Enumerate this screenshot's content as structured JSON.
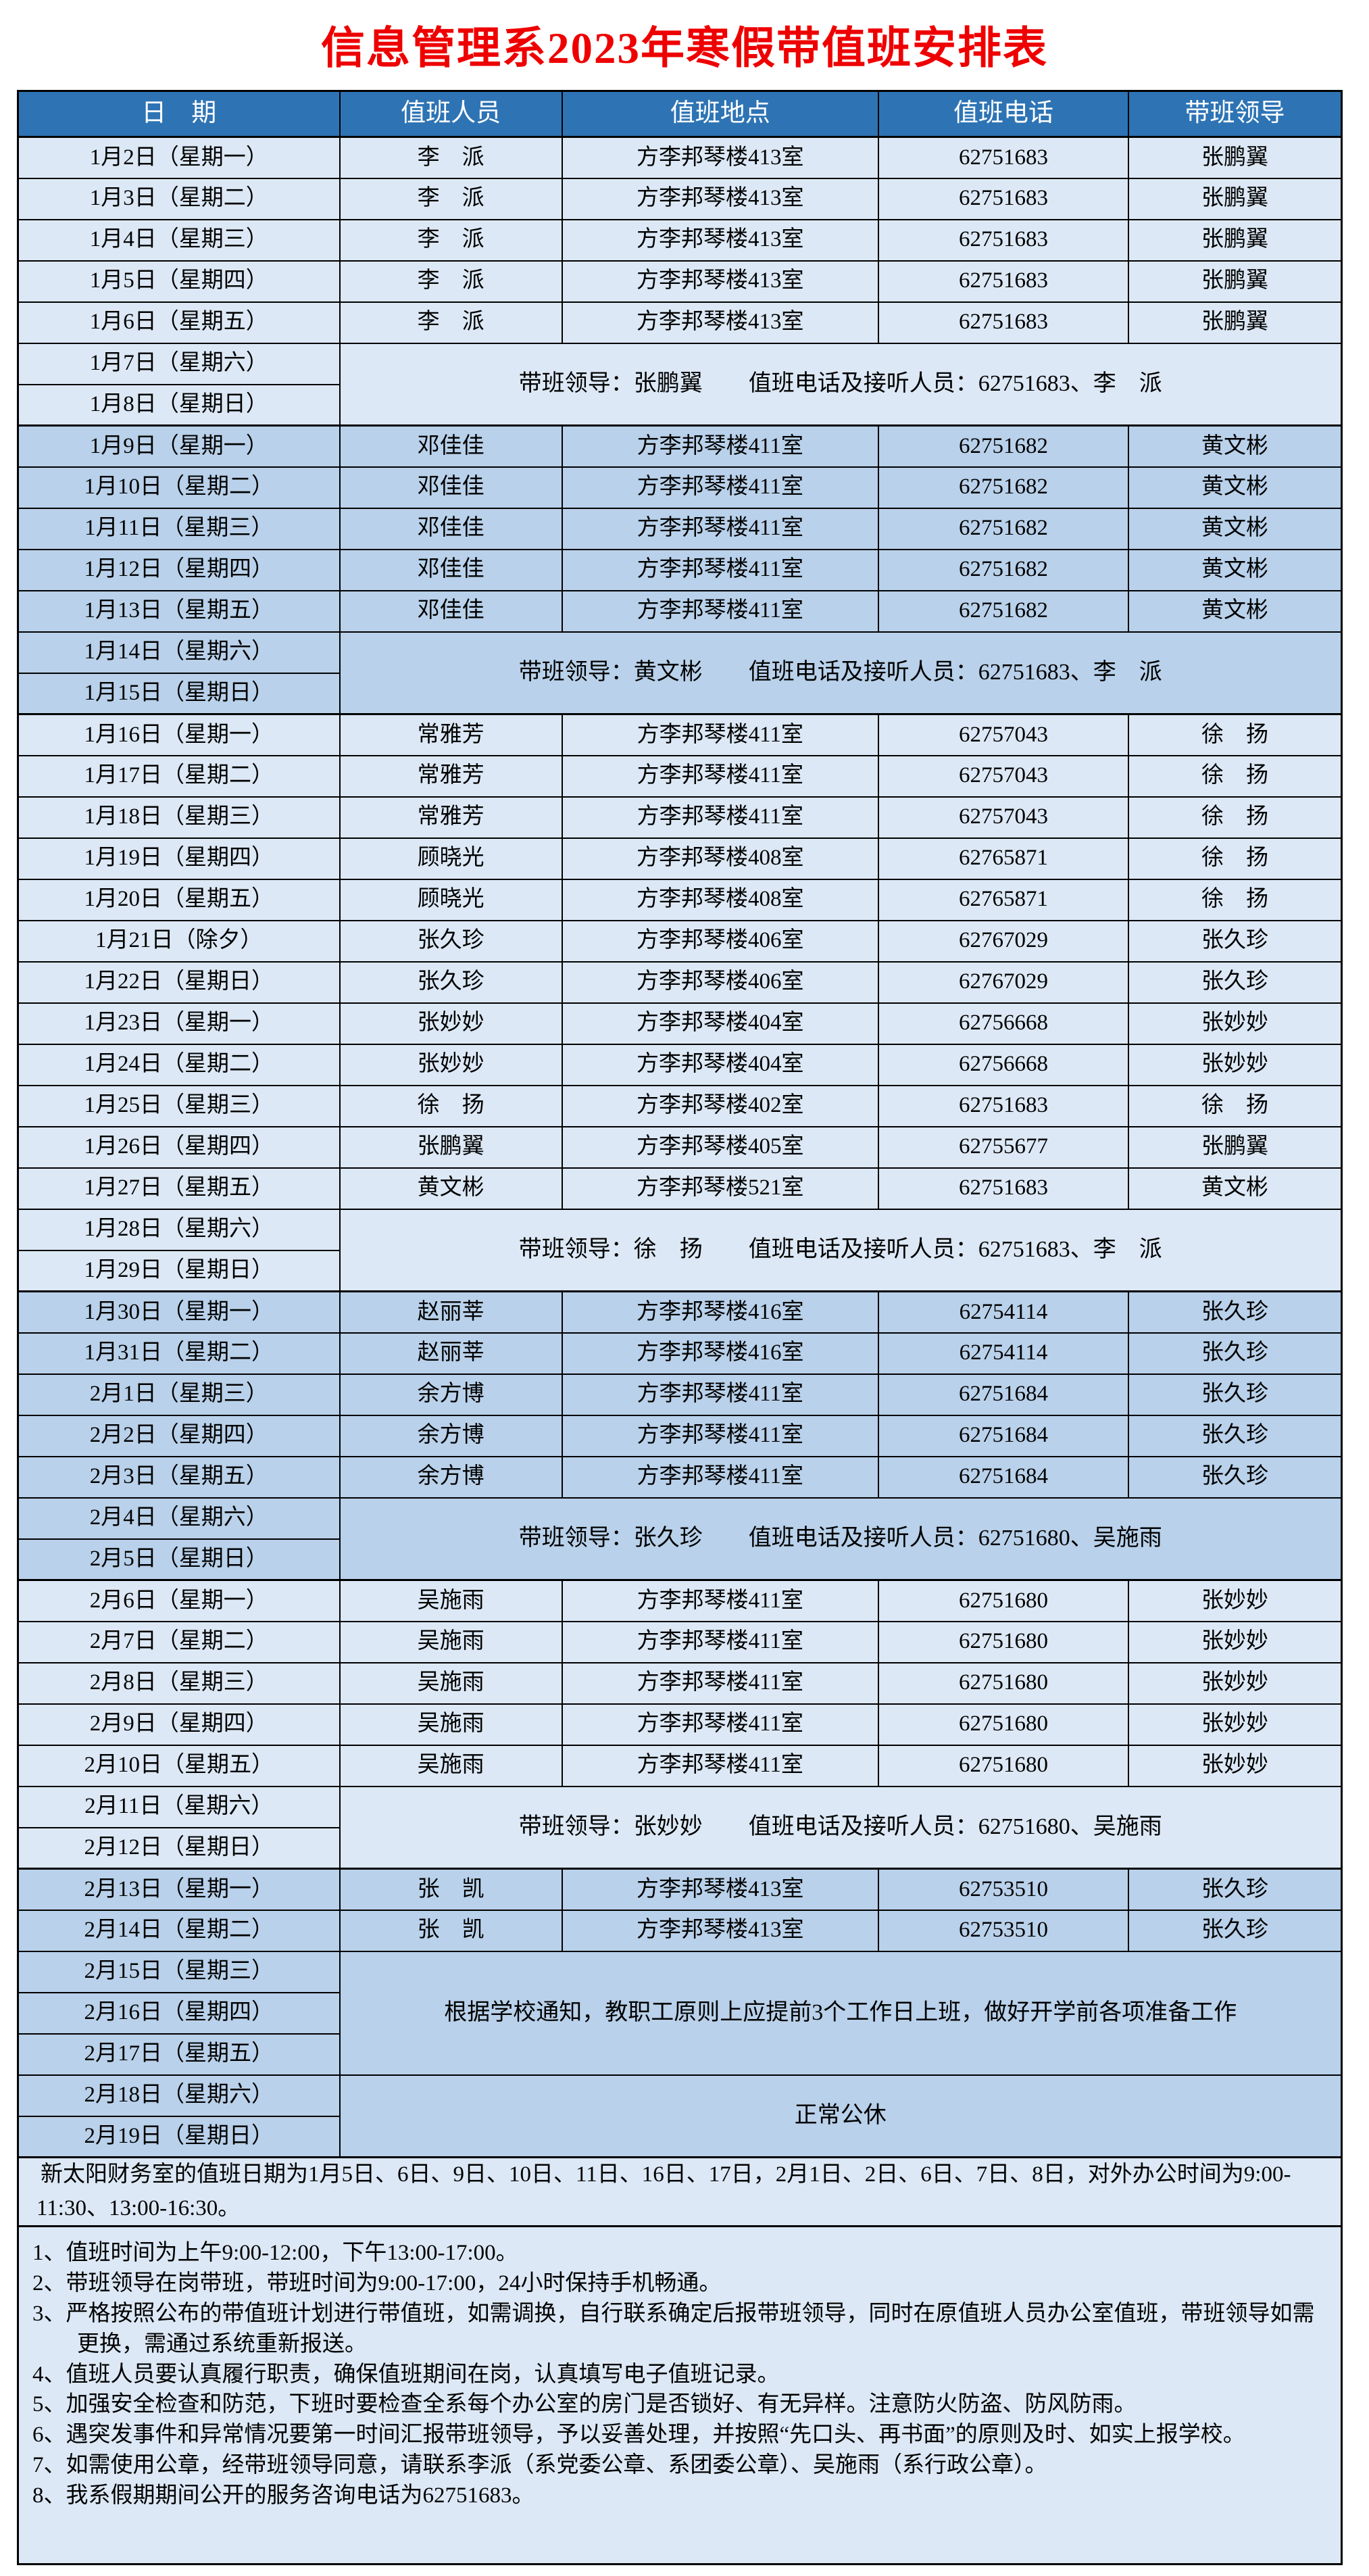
{
  "title": "信息管理系2023年寒假带值班安排表",
  "colors": {
    "header_bg": "#2e74b5",
    "light_row": "#dce8f5",
    "dark_row": "#b9d1ea",
    "title_red": "#ee0000",
    "border": "#000000"
  },
  "table": {
    "columns": [
      "日　期",
      "值班人员",
      "值班地点",
      "值班电话",
      "带班领导"
    ],
    "rows": [
      {
        "kind": "duty",
        "shade": "light",
        "groupStart": true,
        "date": "1月2日（星期一）",
        "person": "李　派",
        "place": "方李邦琴楼413室",
        "phone": "62751683",
        "leader": "张鹏翼"
      },
      {
        "kind": "duty",
        "shade": "light",
        "groupStart": false,
        "date": "1月3日（星期二）",
        "person": "李　派",
        "place": "方李邦琴楼413室",
        "phone": "62751683",
        "leader": "张鹏翼"
      },
      {
        "kind": "duty",
        "shade": "light",
        "groupStart": false,
        "date": "1月4日（星期三）",
        "person": "李　派",
        "place": "方李邦琴楼413室",
        "phone": "62751683",
        "leader": "张鹏翼"
      },
      {
        "kind": "duty",
        "shade": "light",
        "groupStart": false,
        "date": "1月5日（星期四）",
        "person": "李　派",
        "place": "方李邦琴楼413室",
        "phone": "62751683",
        "leader": "张鹏翼"
      },
      {
        "kind": "duty",
        "shade": "light",
        "groupStart": false,
        "date": "1月6日（星期五）",
        "person": "李　派",
        "place": "方李邦琴楼413室",
        "phone": "62751683",
        "leader": "张鹏翼"
      },
      {
        "kind": "merged",
        "shade": "light",
        "groupStart": false,
        "dates": [
          "1月7日（星期六）",
          "1月8日（星期日）"
        ],
        "note": "带班领导：张鹏翼　　值班电话及接听人员：62751683、李　派"
      },
      {
        "kind": "duty",
        "shade": "dark",
        "groupStart": true,
        "date": "1月9日（星期一）",
        "person": "邓佳佳",
        "place": "方李邦琴楼411室",
        "phone": "62751682",
        "leader": "黄文彬"
      },
      {
        "kind": "duty",
        "shade": "dark",
        "groupStart": false,
        "date": "1月10日（星期二）",
        "person": "邓佳佳",
        "place": "方李邦琴楼411室",
        "phone": "62751682",
        "leader": "黄文彬"
      },
      {
        "kind": "duty",
        "shade": "dark",
        "groupStart": false,
        "date": "1月11日（星期三）",
        "person": "邓佳佳",
        "place": "方李邦琴楼411室",
        "phone": "62751682",
        "leader": "黄文彬"
      },
      {
        "kind": "duty",
        "shade": "dark",
        "groupStart": false,
        "date": "1月12日（星期四）",
        "person": "邓佳佳",
        "place": "方李邦琴楼411室",
        "phone": "62751682",
        "leader": "黄文彬"
      },
      {
        "kind": "duty",
        "shade": "dark",
        "groupStart": false,
        "date": "1月13日（星期五）",
        "person": "邓佳佳",
        "place": "方李邦琴楼411室",
        "phone": "62751682",
        "leader": "黄文彬"
      },
      {
        "kind": "merged",
        "shade": "dark",
        "groupStart": false,
        "dates": [
          "1月14日（星期六）",
          "1月15日（星期日）"
        ],
        "note": "带班领导：黄文彬　　值班电话及接听人员：62751683、李　派"
      },
      {
        "kind": "duty",
        "shade": "light",
        "groupStart": true,
        "date": "1月16日（星期一）",
        "person": "常雅芳",
        "place": "方李邦琴楼411室",
        "phone": "62757043",
        "leader": "徐　扬"
      },
      {
        "kind": "duty",
        "shade": "light",
        "groupStart": false,
        "date": "1月17日（星期二）",
        "person": "常雅芳",
        "place": "方李邦琴楼411室",
        "phone": "62757043",
        "leader": "徐　扬"
      },
      {
        "kind": "duty",
        "shade": "light",
        "groupStart": false,
        "date": "1月18日（星期三）",
        "person": "常雅芳",
        "place": "方李邦琴楼411室",
        "phone": "62757043",
        "leader": "徐　扬"
      },
      {
        "kind": "duty",
        "shade": "light",
        "groupStart": false,
        "date": "1月19日（星期四）",
        "person": "顾晓光",
        "place": "方李邦琴楼408室",
        "phone": "62765871",
        "leader": "徐　扬"
      },
      {
        "kind": "duty",
        "shade": "light",
        "groupStart": false,
        "date": "1月20日（星期五）",
        "person": "顾晓光",
        "place": "方李邦琴楼408室",
        "phone": "62765871",
        "leader": "徐　扬"
      },
      {
        "kind": "duty",
        "shade": "light",
        "groupStart": false,
        "date": "1月21日（除夕）",
        "person": "张久珍",
        "place": "方李邦琴楼406室",
        "phone": "62767029",
        "leader": "张久珍"
      },
      {
        "kind": "duty",
        "shade": "light",
        "groupStart": false,
        "date": "1月22日（星期日）",
        "person": "张久珍",
        "place": "方李邦琴楼406室",
        "phone": "62767029",
        "leader": "张久珍"
      },
      {
        "kind": "duty",
        "shade": "light",
        "groupStart": false,
        "date": "1月23日（星期一）",
        "person": "张妙妙",
        "place": "方李邦琴楼404室",
        "phone": "62756668",
        "leader": "张妙妙"
      },
      {
        "kind": "duty",
        "shade": "light",
        "groupStart": false,
        "date": "1月24日（星期二）",
        "person": "张妙妙",
        "place": "方李邦琴楼404室",
        "phone": "62756668",
        "leader": "张妙妙"
      },
      {
        "kind": "duty",
        "shade": "light",
        "groupStart": false,
        "date": "1月25日（星期三）",
        "person": "徐　扬",
        "place": "方李邦琴楼402室",
        "phone": "62751683",
        "leader": "徐　扬"
      },
      {
        "kind": "duty",
        "shade": "light",
        "groupStart": false,
        "date": "1月26日（星期四）",
        "person": "张鹏翼",
        "place": "方李邦琴楼405室",
        "phone": "62755677",
        "leader": "张鹏翼"
      },
      {
        "kind": "duty",
        "shade": "light",
        "groupStart": false,
        "date": "1月27日（星期五）",
        "person": "黄文彬",
        "place": "方李邦琴楼521室",
        "phone": "62751683",
        "leader": "黄文彬"
      },
      {
        "kind": "merged",
        "shade": "light",
        "groupStart": false,
        "dates": [
          "1月28日（星期六）",
          "1月29日（星期日）"
        ],
        "note": "带班领导：徐　扬　　值班电话及接听人员：62751683、李　派"
      },
      {
        "kind": "duty",
        "shade": "dark",
        "groupStart": true,
        "date": "1月30日（星期一）",
        "person": "赵丽莘",
        "place": "方李邦琴楼416室",
        "phone": "62754114",
        "leader": "张久珍"
      },
      {
        "kind": "duty",
        "shade": "dark",
        "groupStart": false,
        "date": "1月31日（星期二）",
        "person": "赵丽莘",
        "place": "方李邦琴楼416室",
        "phone": "62754114",
        "leader": "张久珍"
      },
      {
        "kind": "duty",
        "shade": "dark",
        "groupStart": false,
        "date": "2月1日（星期三）",
        "person": "余方博",
        "place": "方李邦琴楼411室",
        "phone": "62751684",
        "leader": "张久珍"
      },
      {
        "kind": "duty",
        "shade": "dark",
        "groupStart": false,
        "date": "2月2日（星期四）",
        "person": "余方博",
        "place": "方李邦琴楼411室",
        "phone": "62751684",
        "leader": "张久珍"
      },
      {
        "kind": "duty",
        "shade": "dark",
        "groupStart": false,
        "date": "2月3日（星期五）",
        "person": "余方博",
        "place": "方李邦琴楼411室",
        "phone": "62751684",
        "leader": "张久珍"
      },
      {
        "kind": "merged",
        "shade": "dark",
        "groupStart": false,
        "dates": [
          "2月4日（星期六）",
          "2月5日（星期日）"
        ],
        "note": "带班领导：张久珍　　值班电话及接听人员：62751680、吴施雨"
      },
      {
        "kind": "duty",
        "shade": "light",
        "groupStart": true,
        "date": "2月6日（星期一）",
        "person": "吴施雨",
        "place": "方李邦琴楼411室",
        "phone": "62751680",
        "leader": "张妙妙"
      },
      {
        "kind": "duty",
        "shade": "light",
        "groupStart": false,
        "date": "2月7日（星期二）",
        "person": "吴施雨",
        "place": "方李邦琴楼411室",
        "phone": "62751680",
        "leader": "张妙妙"
      },
      {
        "kind": "duty",
        "shade": "light",
        "groupStart": false,
        "date": "2月8日（星期三）",
        "person": "吴施雨",
        "place": "方李邦琴楼411室",
        "phone": "62751680",
        "leader": "张妙妙"
      },
      {
        "kind": "duty",
        "shade": "light",
        "groupStart": false,
        "date": "2月9日（星期四）",
        "person": "吴施雨",
        "place": "方李邦琴楼411室",
        "phone": "62751680",
        "leader": "张妙妙"
      },
      {
        "kind": "duty",
        "shade": "light",
        "groupStart": false,
        "date": "2月10日（星期五）",
        "person": "吴施雨",
        "place": "方李邦琴楼411室",
        "phone": "62751680",
        "leader": "张妙妙"
      },
      {
        "kind": "merged",
        "shade": "light",
        "groupStart": false,
        "dates": [
          "2月11日（星期六）",
          "2月12日（星期日）"
        ],
        "note": "带班领导：张妙妙　　值班电话及接听人员：62751680、吴施雨"
      },
      {
        "kind": "duty",
        "shade": "dark",
        "groupStart": true,
        "date": "2月13日（星期一）",
        "person": "张　凯",
        "place": "方李邦琴楼413室",
        "phone": "62753510",
        "leader": "张久珍"
      },
      {
        "kind": "duty",
        "shade": "dark",
        "groupStart": false,
        "date": "2月14日（星期二）",
        "person": "张　凯",
        "place": "方李邦琴楼413室",
        "phone": "62753510",
        "leader": "张久珍"
      },
      {
        "kind": "merged",
        "shade": "dark",
        "groupStart": false,
        "dates": [
          "2月15日（星期三）",
          "2月16日（星期四）",
          "2月17日（星期五）"
        ],
        "note": "根据学校通知，教职工原则上应提前3个工作日上班，做好开学前各项准备工作"
      },
      {
        "kind": "merged",
        "shade": "dark",
        "groupStart": false,
        "dates": [
          "2月18日（星期六）",
          "2月19日（星期日）"
        ],
        "note": "正常公休"
      }
    ]
  },
  "footer_note": "新太阳财务室的值班日期为1月5日、6日、9日、10日、11日、16日、17日，2月1日、2日、6日、7日、8日，对外办公时间为9:00-11:30、13:00-16:30。",
  "instructions": [
    "1、值班时间为上午9:00-12:00，下午13:00-17:00。",
    "2、带班领导在岗带班，带班时间为9:00-17:00，24小时保持手机畅通。",
    "3、严格按照公布的带值班计划进行带值班，如需调换，自行联系确定后报带班领导，同时在原值班人员办公室值班，带班领导如需更换，需通过系统重新报送。",
    "4、值班人员要认真履行职责，确保值班期间在岗，认真填写电子值班记录。",
    "5、加强安全检查和防范，下班时要检查全系每个办公室的房门是否锁好、有无异样。注意防火防盗、防风防雨。",
    "6、遇突发事件和异常情况要第一时间汇报带班领导，予以妥善处理，并按照“先口头、再书面”的原则及时、如实上报学校。",
    "7、如需使用公章，经带班领导同意，请联系李派（系党委公章、系团委公章）、吴施雨（系行政公章）。",
    "8、我系假期期间公开的服务咨询电话为62751683。"
  ]
}
